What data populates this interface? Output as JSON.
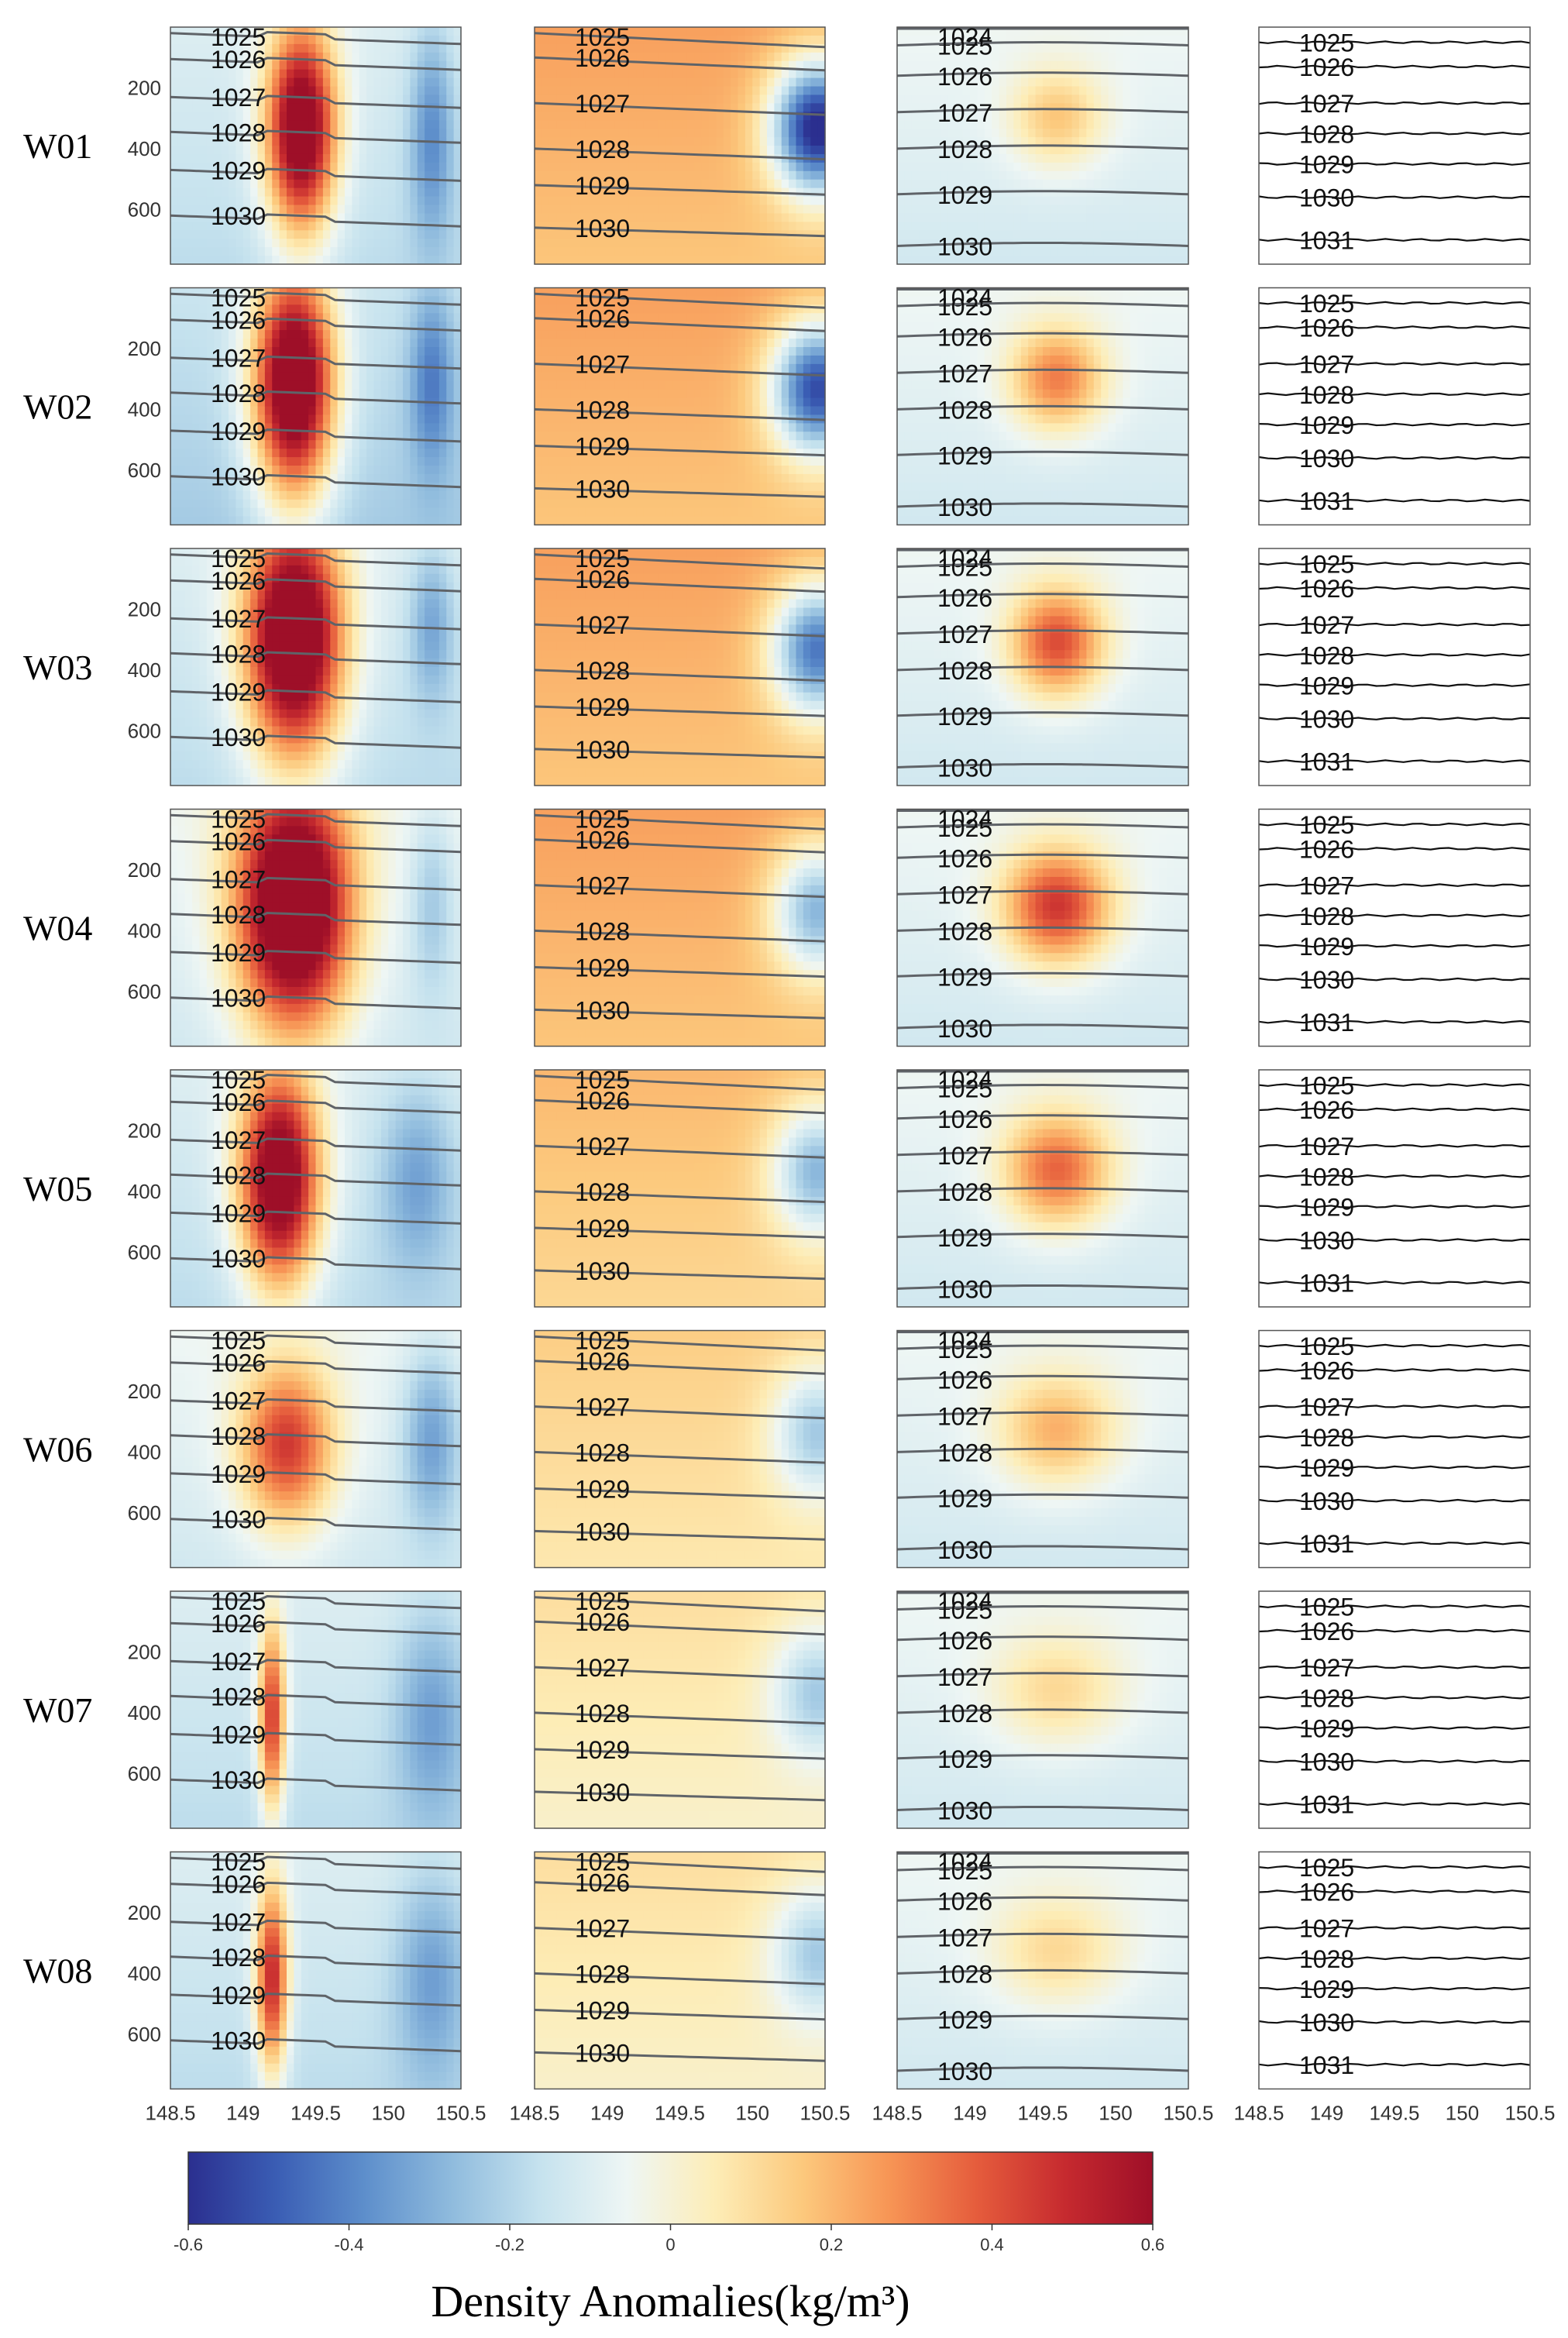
{
  "chart_data": {
    "type": "heatmap",
    "rows": [
      "W01",
      "W02",
      "W03",
      "W04",
      "W05",
      "W06",
      "W07",
      "W08"
    ],
    "x_ticks": [
      "148.5",
      "149",
      "149.5",
      "150",
      "150.5"
    ],
    "x_values": [
      148.5,
      149,
      149.5,
      150,
      150.5
    ],
    "xlim": [
      148.5,
      150.5
    ],
    "y_ticks": [
      "200",
      "400",
      "600"
    ],
    "y_values": [
      200,
      400,
      600
    ],
    "ylim": [
      0,
      780
    ],
    "y_reversed": true,
    "colorbar": {
      "label": "Density Anomalies(kg/m³)",
      "ticks": [
        "-0.6",
        "-0.4",
        "-0.2",
        "0",
        "0.2",
        "0.4",
        "0.6"
      ],
      "range": [
        -0.6,
        0.6
      ],
      "colormap": [
        "#2b2f8f",
        "#3a5db4",
        "#5d8ecb",
        "#8fbbdd",
        "#c5e2ee",
        "#eef6f4",
        "#fdedb7",
        "#fcc97d",
        "#f79555",
        "#e55c3c",
        "#c62a2f",
        "#9e0f28"
      ]
    },
    "columns": [
      {
        "contours": [
          {
            "label": "1025",
            "depth": 20
          },
          {
            "label": "1026",
            "depth": 105
          },
          {
            "label": "1027",
            "depth": 230
          },
          {
            "label": "1028",
            "depth": 345
          },
          {
            "label": "1029",
            "depth": 470
          },
          {
            "label": "1030",
            "depth": 620
          }
        ],
        "rows": [
          {
            "baseline": -0.1,
            "anomaly": {
              "center": 149.4,
              "width": 0.26,
              "depth": 340,
              "depth_spread": 380,
              "amp": 0.9
            },
            "secondary": {
              "center": 150.3,
              "width": 0.15,
              "depth": 350,
              "depth_spread": 350,
              "amp": -0.25
            }
          },
          {
            "baseline": -0.15,
            "anomaly": {
              "center": 149.35,
              "width": 0.3,
              "depth": 320,
              "depth_spread": 420,
              "amp": 1.0
            },
            "secondary": {
              "center": 150.3,
              "width": 0.15,
              "depth": 300,
              "depth_spread": 300,
              "amp": -0.25
            }
          },
          {
            "baseline": -0.1,
            "anomaly": {
              "center": 149.35,
              "width": 0.36,
              "depth": 300,
              "depth_spread": 440,
              "amp": 1.0
            },
            "secondary": {
              "center": 150.3,
              "width": 0.15,
              "depth": 250,
              "depth_spread": 250,
              "amp": -0.2
            }
          },
          {
            "baseline": -0.05,
            "anomaly": {
              "center": 149.35,
              "width": 0.42,
              "depth": 320,
              "depth_spread": 460,
              "amp": 1.0
            },
            "secondary": {
              "center": 150.3,
              "width": 0.15,
              "depth": 300,
              "depth_spread": 300,
              "amp": -0.15
            }
          },
          {
            "baseline": -0.1,
            "anomaly": {
              "center": 149.25,
              "width": 0.3,
              "depth": 360,
              "depth_spread": 400,
              "amp": 0.9
            },
            "secondary": {
              "center": 150.2,
              "width": 0.25,
              "depth": 350,
              "depth_spread": 300,
              "amp": -0.2
            }
          },
          {
            "baseline": -0.05,
            "anomaly": {
              "center": 149.3,
              "width": 0.35,
              "depth": 380,
              "depth_spread": 300,
              "amp": 0.55
            },
            "secondary": {
              "center": 150.3,
              "width": 0.2,
              "depth": 350,
              "depth_spread": 300,
              "amp": -0.25
            }
          },
          {
            "baseline": -0.1,
            "anomaly": {
              "center": 149.2,
              "width": 0.1,
              "depth": 420,
              "depth_spread": 350,
              "amp": 0.6
            },
            "secondary": {
              "center": 150.3,
              "width": 0.25,
              "depth": 400,
              "depth_spread": 350,
              "amp": -0.2
            }
          },
          {
            "baseline": -0.1,
            "anomaly": {
              "center": 149.2,
              "width": 0.12,
              "depth": 420,
              "depth_spread": 350,
              "amp": 0.65
            },
            "secondary": {
              "center": 150.3,
              "width": 0.25,
              "depth": 400,
              "depth_spread": 350,
              "amp": -0.2
            }
          }
        ]
      },
      {
        "contours": [
          {
            "label": "1025",
            "depth": 20
          },
          {
            "label": "1026",
            "depth": 100
          },
          {
            "label": "1027",
            "depth": 250
          },
          {
            "label": "1028",
            "depth": 400
          },
          {
            "label": "1029",
            "depth": 520
          },
          {
            "label": "1030",
            "depth": 660
          }
        ],
        "rows": [
          {
            "baseline": 0.25,
            "anomaly": {
              "center": 150.45,
              "width": 0.35,
              "depth": 330,
              "depth_spread": 250,
              "amp": -0.85
            }
          },
          {
            "baseline": 0.25,
            "anomaly": {
              "center": 150.45,
              "width": 0.35,
              "depth": 330,
              "depth_spread": 250,
              "amp": -0.75
            }
          },
          {
            "baseline": 0.25,
            "anomaly": {
              "center": 150.45,
              "width": 0.35,
              "depth": 330,
              "depth_spread": 250,
              "amp": -0.65
            }
          },
          {
            "baseline": 0.25,
            "anomaly": {
              "center": 150.45,
              "width": 0.35,
              "depth": 330,
              "depth_spread": 250,
              "amp": -0.5
            }
          },
          {
            "baseline": 0.2,
            "anomaly": {
              "center": 150.45,
              "width": 0.35,
              "depth": 330,
              "depth_spread": 250,
              "amp": -0.45
            }
          },
          {
            "baseline": 0.15,
            "anomaly": {
              "center": 150.45,
              "width": 0.35,
              "depth": 330,
              "depth_spread": 250,
              "amp": -0.35
            }
          },
          {
            "baseline": 0.1,
            "anomaly": {
              "center": 150.45,
              "width": 0.35,
              "depth": 330,
              "depth_spread": 250,
              "amp": -0.3
            }
          },
          {
            "baseline": 0.1,
            "anomaly": {
              "center": 150.45,
              "width": 0.35,
              "depth": 330,
              "depth_spread": 250,
              "amp": -0.3
            }
          }
        ]
      },
      {
        "contours": [
          {
            "label": "1024",
            "depth": 5
          },
          {
            "label": "1025",
            "depth": 60
          },
          {
            "label": "1026",
            "depth": 160
          },
          {
            "label": "1027",
            "depth": 280
          },
          {
            "label": "1028",
            "depth": 400
          },
          {
            "label": "1029",
            "depth": 550
          },
          {
            "label": "1030",
            "depth": 720
          }
        ],
        "rows": [
          {
            "baseline": -0.05,
            "anomaly": {
              "center": 149.6,
              "width": 0.35,
              "depth": 300,
              "depth_spread": 180,
              "amp": 0.25
            }
          },
          {
            "baseline": -0.05,
            "anomaly": {
              "center": 149.6,
              "width": 0.35,
              "depth": 300,
              "depth_spread": 190,
              "amp": 0.4
            }
          },
          {
            "baseline": -0.05,
            "anomaly": {
              "center": 149.6,
              "width": 0.35,
              "depth": 310,
              "depth_spread": 200,
              "amp": 0.5
            }
          },
          {
            "baseline": -0.05,
            "anomaly": {
              "center": 149.6,
              "width": 0.4,
              "depth": 320,
              "depth_spread": 210,
              "amp": 0.55
            }
          },
          {
            "baseline": -0.05,
            "anomaly": {
              "center": 149.6,
              "width": 0.4,
              "depth": 330,
              "depth_spread": 210,
              "amp": 0.45
            }
          },
          {
            "baseline": -0.05,
            "anomaly": {
              "center": 149.6,
              "width": 0.45,
              "depth": 330,
              "depth_spread": 210,
              "amp": 0.3
            }
          },
          {
            "baseline": -0.05,
            "anomaly": {
              "center": 149.6,
              "width": 0.5,
              "depth": 330,
              "depth_spread": 210,
              "amp": 0.2
            }
          },
          {
            "baseline": -0.05,
            "anomaly": {
              "center": 149.6,
              "width": 0.5,
              "depth": 330,
              "depth_spread": 210,
              "amp": 0.2
            }
          }
        ]
      },
      {
        "contours": [
          {
            "label": "1025",
            "depth": 50
          },
          {
            "label": "1026",
            "depth": 130
          },
          {
            "label": "1027",
            "depth": 250
          },
          {
            "label": "1028",
            "depth": 350
          },
          {
            "label": "1029",
            "depth": 450
          },
          {
            "label": "1030",
            "depth": 560
          },
          {
            "label": "1031",
            "depth": 700
          }
        ],
        "rows": [
          {},
          {},
          {},
          {},
          {},
          {},
          {},
          {}
        ]
      }
    ]
  }
}
